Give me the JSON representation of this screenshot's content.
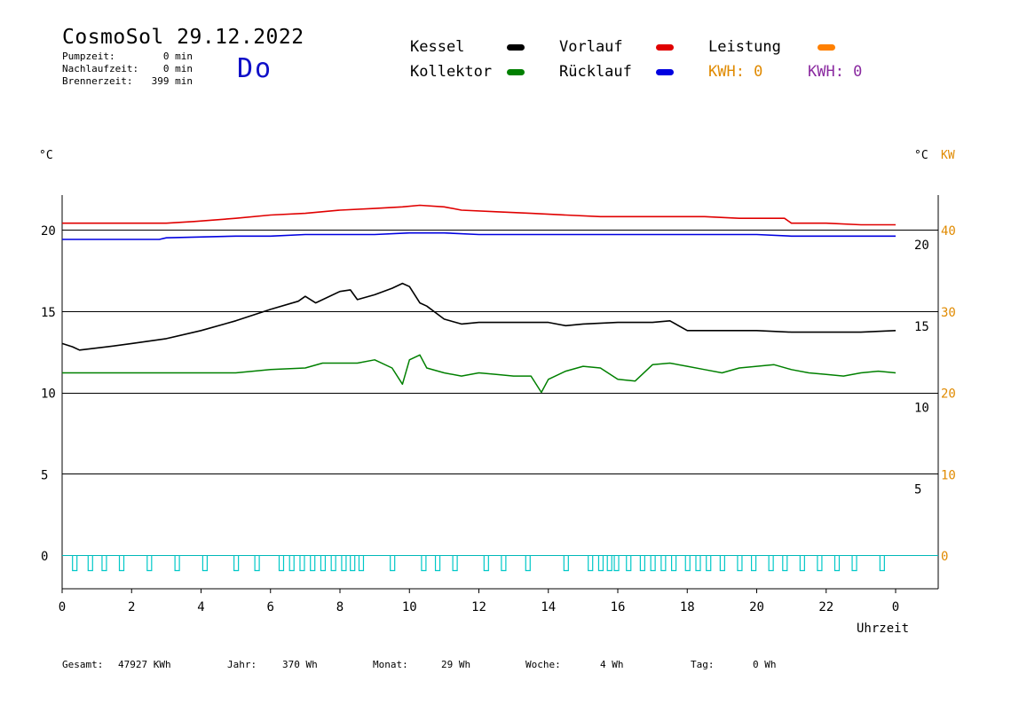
{
  "header": {
    "title": "CosmoSol 29.12.2022",
    "day": "Do",
    "stats": [
      {
        "label": "Pumpzeit:",
        "value": "0 min"
      },
      {
        "label": "Nachlaufzeit:",
        "value": "0 min"
      },
      {
        "label": "Brennerzeit:",
        "value": "399 min"
      }
    ]
  },
  "legend": {
    "items": [
      {
        "label": "Kessel",
        "color": "#000000"
      },
      {
        "label": "Vorlauf",
        "color": "#e00000"
      },
      {
        "label": "Leistung",
        "color": "#ff8000"
      },
      {
        "label": "Kollektor",
        "color": "#008000"
      },
      {
        "label": "Rücklauf",
        "color": "#0000e0"
      }
    ],
    "kwh": [
      {
        "label": "KWH: 0",
        "color": "#e08a00"
      },
      {
        "label": "KWH: 0",
        "color": "#8a2aa0"
      }
    ]
  },
  "axes": {
    "left_unit": "°C",
    "right_unit": "°C",
    "right_unit2": "KW",
    "x_label": "Uhrzeit"
  },
  "footer": [
    {
      "label": "Gesamt:",
      "value": "47927 KWh"
    },
    {
      "label": "Jahr:",
      "value": "370 Wh"
    },
    {
      "label": "Monat:",
      "value": "29 Wh"
    },
    {
      "label": "Woche:",
      "value": "4 Wh"
    },
    {
      "label": "Tag:",
      "value": "0 Wh"
    }
  ],
  "chart_data": {
    "type": "line",
    "xlabel": "Uhrzeit",
    "xlim": [
      0,
      24
    ],
    "ylim": [
      -2,
      22.5
    ],
    "y2lim_kw": [
      0,
      40
    ],
    "x_ticks": [
      "0",
      "2",
      "4",
      "6",
      "8",
      "10",
      "12",
      "14",
      "16",
      "18",
      "20",
      "22",
      "0"
    ],
    "y_ticks_left": [
      "0",
      "5",
      "10",
      "15",
      "20"
    ],
    "y_ticks_right": [
      "5",
      "10",
      "15",
      "20"
    ],
    "y_ticks_kw": [
      "0",
      "10",
      "20",
      "30",
      "40"
    ],
    "grid": true,
    "series": [
      {
        "name": "Vorlauf",
        "color": "#e00000",
        "x": [
          0,
          3,
          3.8,
          5,
          6,
          7,
          8,
          9,
          9.8,
          10.3,
          11,
          11.5,
          12.5,
          13.5,
          14.5,
          15.5,
          16.5,
          17.5,
          18.5,
          19.5,
          20.8,
          21,
          22,
          23,
          24
        ],
        "y": [
          20.4,
          20.4,
          20.5,
          20.7,
          20.9,
          21.0,
          21.2,
          21.3,
          21.4,
          21.5,
          21.4,
          21.2,
          21.1,
          21.0,
          20.9,
          20.8,
          20.8,
          20.8,
          20.8,
          20.7,
          20.7,
          20.4,
          20.4,
          20.3,
          20.3
        ]
      },
      {
        "name": "Rücklauf",
        "color": "#0000e0",
        "x": [
          0,
          2.8,
          3,
          5,
          6,
          7,
          8,
          9,
          10,
          11,
          12,
          13,
          14,
          15,
          16,
          17,
          18,
          19,
          20,
          21,
          22,
          23,
          24
        ],
        "y": [
          19.4,
          19.4,
          19.5,
          19.6,
          19.6,
          19.7,
          19.7,
          19.7,
          19.8,
          19.8,
          19.7,
          19.7,
          19.7,
          19.7,
          19.7,
          19.7,
          19.7,
          19.7,
          19.7,
          19.6,
          19.6,
          19.6,
          19.6
        ]
      },
      {
        "name": "Kessel",
        "color": "#000000",
        "x": [
          0,
          0.3,
          0.5,
          1.3,
          2,
          3,
          4,
          5,
          6,
          6.8,
          7,
          7.3,
          8,
          8.3,
          8.5,
          9,
          9.5,
          9.8,
          10,
          10.3,
          10.5,
          11,
          11.5,
          12,
          13,
          14,
          14.5,
          15,
          16,
          17,
          17.5,
          18,
          19,
          20,
          21,
          22,
          23,
          24
        ],
        "y": [
          13.0,
          12.8,
          12.6,
          12.8,
          13.0,
          13.3,
          13.8,
          14.4,
          15.1,
          15.6,
          15.9,
          15.5,
          16.2,
          16.3,
          15.7,
          16.0,
          16.4,
          16.7,
          16.5,
          15.5,
          15.3,
          14.5,
          14.2,
          14.3,
          14.3,
          14.3,
          14.1,
          14.2,
          14.3,
          14.3,
          14.4,
          13.8,
          13.8,
          13.8,
          13.7,
          13.7,
          13.7,
          13.8
        ]
      },
      {
        "name": "Kollektor",
        "color": "#008000",
        "x": [
          0,
          1,
          2,
          3,
          4,
          5,
          6,
          7,
          7.5,
          8,
          8.5,
          9,
          9.5,
          9.8,
          10,
          10.3,
          10.5,
          11,
          11.5,
          12,
          12.5,
          13,
          13.5,
          13.8,
          14,
          14.5,
          15,
          15.5,
          16,
          16.5,
          17,
          17.5,
          18,
          18.5,
          19,
          19.5,
          20,
          20.5,
          21,
          21.5,
          22,
          22.5,
          23,
          23.5,
          24
        ],
        "y": [
          11.2,
          11.2,
          11.2,
          11.2,
          11.2,
          11.2,
          11.4,
          11.5,
          11.8,
          11.8,
          11.8,
          12.0,
          11.5,
          10.5,
          12.0,
          12.3,
          11.5,
          11.2,
          11.0,
          11.2,
          11.1,
          11.0,
          11.0,
          10.0,
          10.8,
          11.3,
          11.6,
          11.5,
          10.8,
          10.7,
          11.7,
          11.8,
          11.6,
          11.4,
          11.2,
          11.5,
          11.6,
          11.7,
          11.4,
          11.2,
          11.1,
          11.0,
          11.2,
          11.3,
          11.2
        ]
      }
    ],
    "pump_pulses_h": [
      0.35,
      0.8,
      1.2,
      1.7,
      2.5,
      3.3,
      4.1,
      5.0,
      5.6,
      6.3,
      6.6,
      6.9,
      7.2,
      7.5,
      7.8,
      8.1,
      8.35,
      8.6,
      9.5,
      10.4,
      10.8,
      11.3,
      12.2,
      12.7,
      13.4,
      14.5,
      15.2,
      15.5,
      15.75,
      15.95,
      16.3,
      16.7,
      17.0,
      17.3,
      17.6,
      18.0,
      18.3,
      18.6,
      19.0,
      19.5,
      19.9,
      20.4,
      20.8,
      21.3,
      21.8,
      22.3,
      22.8,
      23.6
    ]
  }
}
